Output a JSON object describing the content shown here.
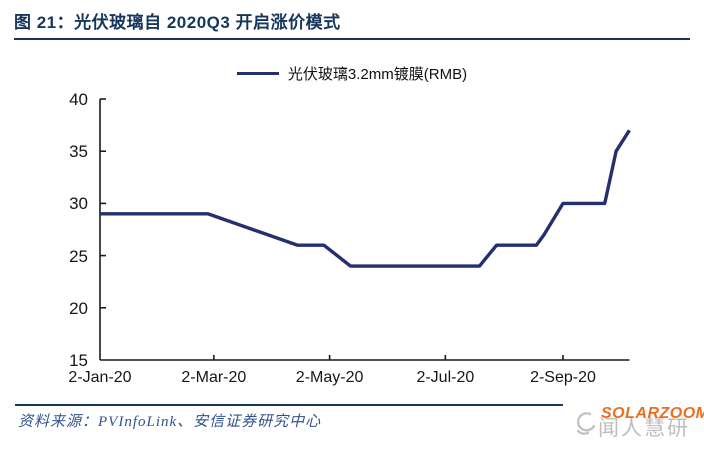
{
  "header": {
    "title": "图 21：光伏玻璃自 2020Q3 开启涨价模式",
    "title_color": "#17365d",
    "underline_color": "#17365d"
  },
  "legend": {
    "label": "光伏玻璃3.2mm镀膜(RMB)",
    "line_color": "#242f6e"
  },
  "chart_data": {
    "type": "line",
    "title": "光伏玻璃3.2mm镀膜(RMB)",
    "xlabel": "",
    "ylabel": "",
    "ylim": [
      15,
      40
    ],
    "y_ticks": [
      15,
      20,
      25,
      30,
      35,
      40
    ],
    "x_ticks": [
      {
        "label": "2-Jan-20",
        "day": 0
      },
      {
        "label": "2-Mar-20",
        "day": 60
      },
      {
        "label": "2-May-20",
        "day": 121
      },
      {
        "label": "2-Jul-20",
        "day": 182
      },
      {
        "label": "2-Sep-20",
        "day": 244
      }
    ],
    "x_range_days": [
      0,
      279
    ],
    "grid": false,
    "legend_position": "top-center",
    "axis_color": "#1a1a1a",
    "series": [
      {
        "name": "光伏玻璃3.2mm镀膜(RMB)",
        "unit": "RMB",
        "color": "#242f6e",
        "points": [
          {
            "date": "2-Jan-20",
            "day": 0,
            "value": 29
          },
          {
            "date": "28-Feb-20",
            "day": 57,
            "value": 29
          },
          {
            "date": "15-Apr-20",
            "day": 104,
            "value": 26
          },
          {
            "date": "29-Apr-20",
            "day": 118,
            "value": 26
          },
          {
            "date": "13-May-20",
            "day": 132,
            "value": 24
          },
          {
            "date": "20-Jul-20",
            "day": 200,
            "value": 24
          },
          {
            "date": "29-Jul-20",
            "day": 209,
            "value": 26
          },
          {
            "date": "19-Aug-20",
            "day": 230,
            "value": 26
          },
          {
            "date": "23-Aug-20",
            "day": 234,
            "value": 27
          },
          {
            "date": "2-Sep-20",
            "day": 244,
            "value": 30
          },
          {
            "date": "24-Sep-20",
            "day": 266,
            "value": 30
          },
          {
            "date": "30-Sep-20",
            "day": 272,
            "value": 35
          },
          {
            "date": "7-Oct-20",
            "day": 279,
            "value": 37
          }
        ]
      }
    ]
  },
  "footer": {
    "source_text": "资料来源：PVInfoLink、安信证券研究中心",
    "source_color": "#31518f",
    "divider_color": "#17365d"
  },
  "watermark": {
    "orange_text": "SOLARZOOM",
    "orange_color": "#ed6d1f",
    "gray_text": "闻人慧研",
    "gray_color": "#bdbdbd",
    "icon_color": "#c3c3c3"
  }
}
